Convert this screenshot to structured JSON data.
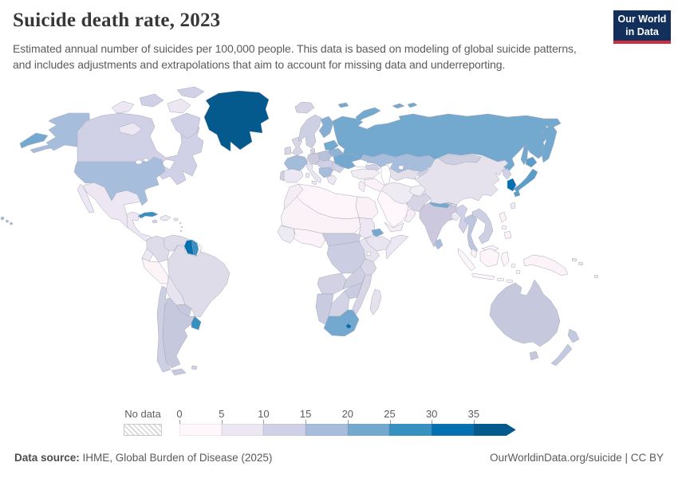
{
  "header": {
    "title": "Suicide death rate, 2023",
    "subtitle": "Estimated annual number of suicides per 100,000 people. This data is based on modeling of global suicide patterns, and includes adjustments and extrapolations that aim to account for missing data and underreporting."
  },
  "logo": {
    "line1": "Our World",
    "line2": "in Data",
    "bg_color": "#12305b",
    "bar_color": "#ce2e41"
  },
  "legend": {
    "no_data_label": "No data",
    "tick_labels": [
      "0",
      "5",
      "10",
      "15",
      "20",
      "25",
      "30",
      "35"
    ],
    "bin_colors": [
      "#fff7fb",
      "#ece7f2",
      "#d0d1e6",
      "#a6bddb",
      "#74a9cf",
      "#3690c0",
      "#0570b0",
      "#045a8d"
    ]
  },
  "footer": {
    "source_label": "Data source:",
    "source_text": " IHME, Global Burden of Disease (2025)",
    "right_text": "OurWorldinData.org/suicide | CC BY"
  },
  "chart_data": {
    "type": "choropleth-map",
    "title": "Suicide death rate, 2023",
    "unit": "suicides per 100,000 people",
    "legend_bins": [
      0,
      5,
      10,
      15,
      20,
      25,
      30,
      35
    ],
    "legend_colors": [
      "#fff7fb",
      "#ece7f2",
      "#d0d1e6",
      "#a6bddb",
      "#74a9cf",
      "#3690c0",
      "#0570b0",
      "#045a8d"
    ],
    "no_data_style": "gray diagonal hatch",
    "notable_readings": {
      "greenland": "35+",
      "guyana": "30-35",
      "south-korea": "30-35",
      "russia": "20-25",
      "uruguay": "25-30",
      "south-africa": "20-25",
      "japan": "25-30",
      "cuba": "25-30",
      "usa": "15-20",
      "canada": "10-15",
      "australia": "10-15",
      "india": "10-15",
      "china": "5-10",
      "africa-majority": "0-10",
      "middle-east": "0-5"
    }
  },
  "map": {
    "region_fills": {
      "chukotka": "#74a9cf",
      "aleutians": "#a6bddb",
      "alaska": "#a6bddb",
      "hawaii": "#a6bddb",
      "canada": "#d0d1e6",
      "arctic-island-1": "#ece7f2",
      "arctic-island-2": "#d0d1e6",
      "arctic-island-3": "#ece7f2",
      "arctic-island-4": "#d0d1e6",
      "baffin-island": "#d0d1e6",
      "victoria-island": "#ece7f2",
      "greenland": "#045a8d",
      "usa": "#a6bddb",
      "baja-california": "#ece7f2",
      "mexico": "#ece7f2",
      "central-america": "#ece7f2",
      "cuba": "#3690c0",
      "hispaniola": "#ece7f2",
      "jamaica": "#d0d1e6",
      "puerto-rico": "#ece7f2",
      "lesser-antilles": "#ece7f2",
      "colombia": "#dfdcea",
      "venezuela": "#dfdcea",
      "guyana": "#0570b0",
      "suriname": "#3690c0",
      "french-guiana": "no-data",
      "brazil": "#dfdcea",
      "ecuador": "#ece7f2",
      "peru": "#fdf4f8",
      "bolivia": "#e7e3ef",
      "paraguay": "#c6c9de",
      "chile": "#cdd0e2",
      "argentina": "#c6c9de",
      "uruguay": "#3690c0",
      "tierra-del-fuego": "#c6c9de",
      "falkland-islands": "#d0d1e6",
      "iceland": "#d5d3e4",
      "uk": "#d8d5e5",
      "ireland": "#d8d5e5",
      "norway-sweden": "#cdd0e2",
      "denmark": "#d0d1e6",
      "finland": "#85aed3",
      "svalbard": "#74a9cf",
      "baltics": "#74a9cf",
      "belarus": "#8fb4d6",
      "poland": "#b9c0da",
      "germany": "#ccc9dd",
      "france": "#a3bcda",
      "iberia": "#ece7f2",
      "portugal": "#d0d1e6",
      "italy": "#eae6f0",
      "sardinia": "#ece7f2",
      "sicily": "#ece7f2",
      "central-europe": "#d0d1e6",
      "balkans": "#a6bddb",
      "romania-bulgaria": "#d0d1e6",
      "greece": "#ece7f2",
      "ukraine": "#74a9cf",
      "russia": "#74a9cf",
      "novaya-zemlya": "#74a9cf",
      "franz-josef-1": "#74a9cf",
      "franz-josef-2": "#74a9cf",
      "kamchatka": "#74a9cf",
      "sakhalin": "#74a9cf",
      "kazakhstan": "#a6bddb",
      "central-asia": "#e3e0ec",
      "kyrgyz-tajik": "#d0d1e6",
      "caucasus": "#d0d1e6",
      "turkey": "#f2ecf3",
      "levant": "#f5eef3",
      "iraq-syria": "#fbf2f7",
      "saudi-arabia": "#fff7fb",
      "yemen": "#f7eef4",
      "oman": "#f7eef4",
      "iran": "#eeebf2",
      "afghanistan": "#f0edf3",
      "pakistan": "#d7d5e5",
      "india": "#ccc9df",
      "nepal": "#74a9cf",
      "bhutan": "#d0d1e6",
      "bangladesh": "#ece7f2",
      "sri-lanka": "#a6bddb",
      "china": "#e5e1ed",
      "mongolia": "#cdcfe1",
      "north-korea": "#d0d1e6",
      "south-korea": "#0570b0",
      "japan-hokkaido": "#5b9cc9",
      "japan-honshu": "#5b9cc9",
      "japan-kyushu": "#5b9cc9",
      "taiwan": "#f3ecf4",
      "myanmar": "#d0d1e6",
      "thailand": "#bcc6de",
      "indochina": "#ccd0e2",
      "malay-peninsula": "#fbf2f7",
      "malaysia-borneo": "#fbf2f7",
      "sumatra": "#fdf5f9",
      "java": "#fdf5f9",
      "borneo": "#fdf5f9",
      "sulawesi": "#fdf5f9",
      "lesser-sunda": "#fdf5f9",
      "moluccas": "#fdf5f9",
      "luzon": "#fcf2f7",
      "visayas": "#fcf2f7",
      "mindanao": "#fcf2f7",
      "new-guinea": "#fbf3f8",
      "solomon-islands": "#ece7f2",
      "fiji": "#ece7f2",
      "australia": "#c6c9de",
      "tasmania": "#c6c9de",
      "nz-north": "#c3c9de",
      "nz-south": "#c3c9de",
      "morocco": "#f4edf4",
      "algeria-libya": "#fdf5f9",
      "egypt": "#faf0f6",
      "sahel": "#faf2f7",
      "senegal-guinea": "#eceaf2",
      "nigeria-ghana": "#fbf3f8",
      "sudan": "#ece7f2",
      "eritrea": "#74a9cf",
      "ethiopia": "#e9e5f0",
      "somalia": "#ece7f2",
      "cameroon-car": "#c9cce1",
      "drc": "#cbcee2",
      "uganda-kenya": "#e7e3ee",
      "tanzania": "#dbd8e8",
      "angola": "#d3d2e4",
      "zambia": "#ced0e2",
      "mozambique": "#d8d6e6",
      "zimbabwe": "#c9cce1",
      "namibia": "#c9cce1",
      "botswana": "#d2d3e4",
      "south-africa": "#74a9cf",
      "lesotho": "#0570b0",
      "madagascar": "#e5e1ed"
    }
  }
}
